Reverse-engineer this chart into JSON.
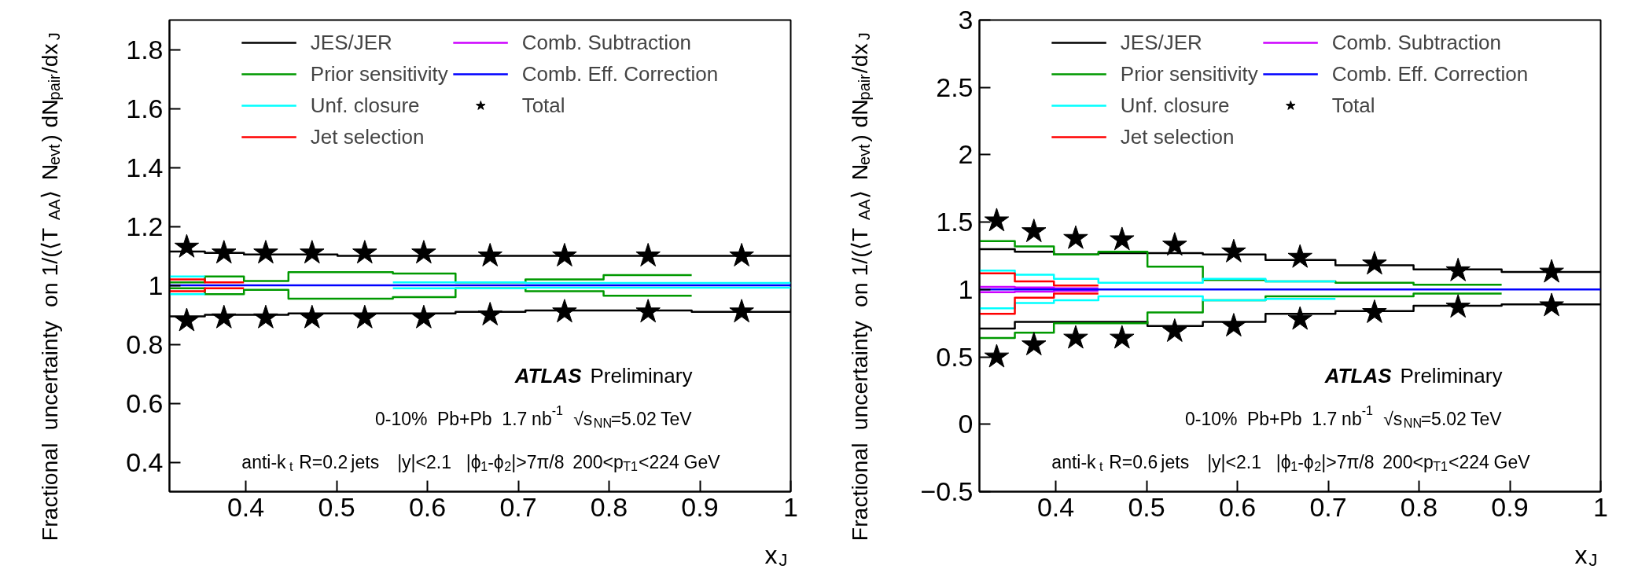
{
  "chart_data": [
    {
      "type": "step",
      "ylabel": "Fractional uncertainty on 1/(⟨T$_{AA}$⟩ N$_{evt}$) dN$_{pair}$/dx$_{J}$",
      "xlabel": "x$_{J}$",
      "xlim": [
        0.316,
        1.0
      ],
      "xticks": [
        0.4,
        0.5,
        0.6,
        0.7,
        0.8,
        0.9,
        1
      ],
      "ylim": [
        0.3,
        1.9
      ],
      "yticks": [
        0.4,
        0.6,
        0.8,
        1,
        1.2,
        1.4,
        1.6,
        1.8
      ],
      "legend": "top",
      "annotations": [
        "ATLAS Preliminary",
        "0-10%  Pb+Pb  1.7 nb$^{-1}$  √s$_{NN}$=5.02 TeV",
        "anti-k$_{t}$ R=0.2 jets   |y|<2.1   |ϕ$_{1}$-ϕ$_{2}$|>7π/8  200<p$_{T1}$<224 GeV"
      ],
      "series": [
        {
          "name": "JES/JER",
          "color": "#000000",
          "x": [
            0.316,
            0.355,
            0.398,
            0.447,
            0.501,
            0.562,
            0.631,
            0.708,
            0.794,
            0.891,
            1.0
          ],
          "values": [
            1.115,
            1.11,
            1.105,
            1.105,
            1.1,
            1.1,
            1.1,
            1.1,
            1.1,
            1.1,
            1.1
          ]
        },
        {
          "color": "#000000",
          "x": [
            0.316,
            0.355,
            0.398,
            0.447,
            0.501,
            0.562,
            0.631,
            0.708,
            0.794,
            0.891,
            1.0
          ],
          "values": [
            0.895,
            0.9,
            0.9,
            0.905,
            0.905,
            0.905,
            0.91,
            0.915,
            0.915,
            0.91,
            0.91
          ]
        },
        {
          "name": "Prior sensitivity",
          "color": "#009900",
          "x": [
            0.316,
            0.355,
            0.398,
            0.447,
            0.501,
            0.562,
            0.631,
            0.708,
            0.794,
            0.891
          ],
          "values": [
            1.01,
            1.03,
            1.015,
            1.045,
            1.045,
            1.04,
            1.01,
            1.02,
            1.035,
            1.035
          ]
        },
        {
          "color": "#009900",
          "x": [
            0.316,
            0.355,
            0.398,
            0.447,
            0.501,
            0.562,
            0.631,
            0.708,
            0.794,
            0.891
          ],
          "values": [
            0.99,
            0.97,
            0.985,
            0.955,
            0.955,
            0.96,
            0.99,
            0.98,
            0.965,
            0.965
          ]
        },
        {
          "name": "Unf. closure",
          "color": "#00ffff",
          "x": [
            0.316,
            0.355
          ],
          "values": [
            1.03,
            1.03
          ]
        },
        {
          "color": "#00ffff",
          "x": [
            0.316,
            0.355
          ],
          "values": [
            0.97,
            0.97
          ]
        },
        {
          "color": "#00ffff",
          "x": [
            0.562,
            0.631,
            0.708,
            0.794,
            0.891,
            1.0
          ],
          "values": [
            1.01,
            1.01,
            1.008,
            1.008,
            1.008,
            1.008
          ]
        },
        {
          "color": "#00ffff",
          "x": [
            0.562,
            0.631,
            0.708,
            0.794,
            0.891,
            1.0
          ],
          "values": [
            0.99,
            0.99,
            0.992,
            0.992,
            0.992,
            0.992
          ]
        },
        {
          "name": "Jet selection",
          "color": "#ff0000",
          "x": [
            0.316,
            0.355,
            0.398
          ],
          "values": [
            1.02,
            1.01,
            1.01
          ]
        },
        {
          "color": "#ff0000",
          "x": [
            0.316,
            0.355,
            0.398
          ],
          "values": [
            0.98,
            0.99,
            0.99
          ]
        },
        {
          "name": "Comb. Subtraction",
          "color": "#cc00ff"
        },
        {
          "name": "Comb. Eff. Correction",
          "color": "#0000ff",
          "x": [
            0.316,
            0.355,
            0.398,
            0.447,
            0.501,
            0.562,
            0.631,
            0.708,
            0.794,
            0.891,
            1.0
          ],
          "values": [
            1.0,
            1.0,
            1.0,
            1.0,
            1.0,
            1.0,
            1.0,
            1.0,
            1.0,
            1.0,
            1.0
          ]
        },
        {
          "name": "Total",
          "type": "scatter",
          "marker": "star",
          "color": "#000000",
          "x": [
            0.335,
            0.376,
            0.422,
            0.473,
            0.531,
            0.596,
            0.669,
            0.751,
            0.843,
            0.946
          ],
          "values": [
            1.13,
            1.11,
            1.11,
            1.11,
            1.11,
            1.11,
            1.1,
            1.1,
            1.1,
            1.1
          ]
        },
        {
          "type": "scatter",
          "marker": "star",
          "color": "#000000",
          "x": [
            0.335,
            0.376,
            0.422,
            0.473,
            0.531,
            0.596,
            0.669,
            0.751,
            0.843,
            0.946
          ],
          "values": [
            0.88,
            0.89,
            0.89,
            0.89,
            0.89,
            0.89,
            0.9,
            0.91,
            0.91,
            0.91
          ]
        }
      ]
    },
    {
      "type": "step",
      "ylabel": "Fractional uncertainty on 1/(⟨T$_{AA}$⟩ N$_{evt}$) dN$_{pair}$/dx$_{J}$",
      "xlabel": "x$_{J}$",
      "xlim": [
        0.316,
        1.0
      ],
      "xticks": [
        0.4,
        0.5,
        0.6,
        0.7,
        0.8,
        0.9,
        1
      ],
      "ylim": [
        -0.5,
        3
      ],
      "yticks": [
        {
          "value": -0.5,
          "label": "−0.5"
        },
        0,
        0.5,
        1,
        1.5,
        2,
        2.5,
        3
      ],
      "legend": "top",
      "annotations": [
        "ATLAS Preliminary",
        "0-10%  Pb+Pb  1.7 nb$^{-1}$  √s$_{NN}$=5.02 TeV",
        "anti-k$_{t}$ R=0.6 jets   |y|<2.1   |ϕ$_{1}$-ϕ$_{2}$|>7π/8  200<p$_{T1}$<224 GeV"
      ],
      "series": [
        {
          "name": "JES/JER",
          "color": "#000000",
          "x": [
            0.316,
            0.355,
            0.398,
            0.447,
            0.501,
            0.562,
            0.631,
            0.708,
            0.794,
            0.891,
            1.0
          ],
          "values": [
            1.3,
            1.28,
            1.26,
            1.27,
            1.27,
            1.26,
            1.22,
            1.18,
            1.15,
            1.13,
            1.13
          ]
        },
        {
          "color": "#000000",
          "x": [
            0.316,
            0.355,
            0.398,
            0.447,
            0.501,
            0.562,
            0.631,
            0.708,
            0.794,
            0.891,
            1.0
          ],
          "values": [
            0.71,
            0.76,
            0.76,
            0.76,
            0.73,
            0.76,
            0.82,
            0.84,
            0.88,
            0.89,
            0.89
          ]
        },
        {
          "name": "Prior sensitivity",
          "color": "#009900",
          "x": [
            0.316,
            0.355,
            0.398,
            0.447,
            0.501,
            0.562,
            0.631,
            0.708,
            0.794,
            0.891
          ],
          "values": [
            1.36,
            1.32,
            1.26,
            1.28,
            1.17,
            1.07,
            1.06,
            1.05,
            1.035,
            1.035
          ]
        },
        {
          "color": "#009900",
          "x": [
            0.316,
            0.355,
            0.398,
            0.447,
            0.501,
            0.562,
            0.631,
            0.708,
            0.794,
            0.891
          ],
          "values": [
            0.64,
            0.68,
            0.75,
            0.75,
            0.83,
            0.92,
            0.95,
            0.95,
            0.97,
            0.97
          ]
        },
        {
          "name": "Unf. closure",
          "color": "#00ffff",
          "x": [
            0.316,
            0.355,
            0.398,
            0.447,
            0.501,
            0.562,
            0.631,
            0.708
          ],
          "values": [
            1.14,
            1.11,
            1.08,
            1.05,
            1.05,
            1.08,
            1.06,
            1.06
          ]
        },
        {
          "color": "#00ffff",
          "x": [
            0.316,
            0.355,
            0.398,
            0.447,
            0.501,
            0.562,
            0.631,
            0.708
          ],
          "values": [
            0.86,
            0.9,
            0.92,
            0.95,
            0.95,
            0.92,
            0.93,
            0.93
          ]
        },
        {
          "name": "Jet selection",
          "color": "#ff0000",
          "x": [
            0.316,
            0.355,
            0.398,
            0.447
          ],
          "values": [
            1.12,
            1.06,
            1.03,
            1.03
          ]
        },
        {
          "color": "#ff0000",
          "x": [
            0.316,
            0.355,
            0.398,
            0.447
          ],
          "values": [
            0.82,
            0.94,
            0.97,
            0.97
          ]
        },
        {
          "name": "Comb. Subtraction",
          "color": "#cc00ff",
          "x": [
            0.316,
            0.355,
            0.398,
            0.447
          ],
          "values": [
            1.02,
            1.015,
            1.01,
            1.01
          ]
        },
        {
          "color": "#cc00ff",
          "x": [
            0.316,
            0.355,
            0.398,
            0.447
          ],
          "values": [
            0.98,
            0.985,
            0.99,
            0.99
          ]
        },
        {
          "name": "Comb. Eff. Correction",
          "color": "#0000ff",
          "x": [
            0.316,
            0.355,
            0.398,
            0.447,
            0.501,
            0.562,
            0.631,
            0.708,
            0.794,
            0.891,
            1.0
          ],
          "values": [
            1.0,
            1.0,
            1.0,
            1.0,
            1.0,
            1.0,
            1.0,
            1.0,
            1.0,
            1.0,
            1.0
          ]
        },
        {
          "name": "Total",
          "type": "scatter",
          "marker": "star",
          "color": "#000000",
          "x": [
            0.335,
            0.376,
            0.422,
            0.473,
            0.531,
            0.596,
            0.669,
            0.751,
            0.843,
            0.946
          ],
          "values": [
            1.51,
            1.43,
            1.38,
            1.37,
            1.33,
            1.28,
            1.24,
            1.19,
            1.14,
            1.13
          ]
        },
        {
          "type": "scatter",
          "marker": "star",
          "color": "#000000",
          "x": [
            0.335,
            0.376,
            0.422,
            0.473,
            0.531,
            0.596,
            0.669,
            0.751,
            0.843,
            0.946
          ],
          "values": [
            0.5,
            0.59,
            0.64,
            0.64,
            0.69,
            0.73,
            0.78,
            0.83,
            0.87,
            0.88
          ]
        }
      ]
    }
  ]
}
